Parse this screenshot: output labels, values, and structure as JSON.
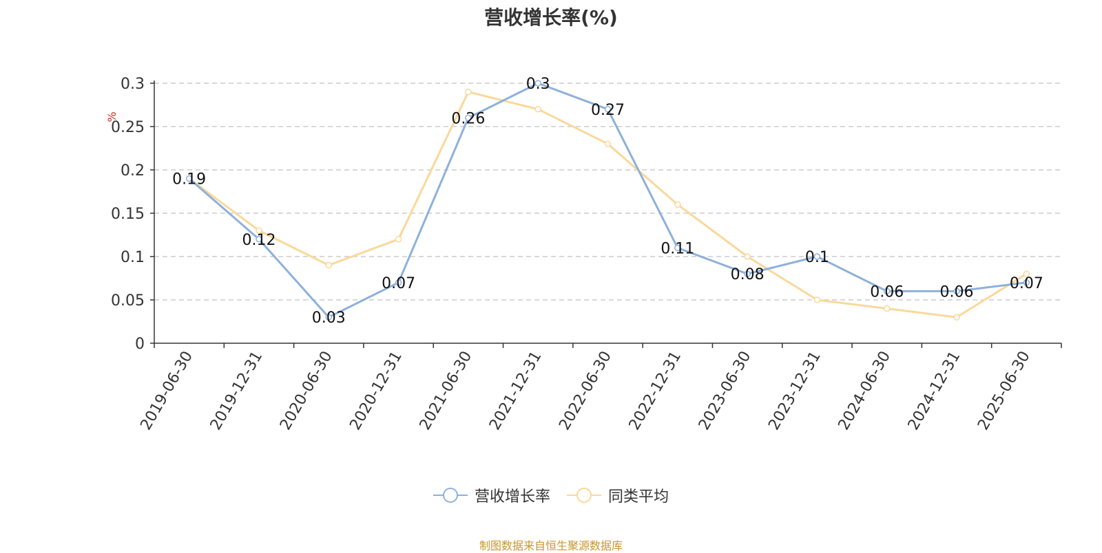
{
  "chart_data": {
    "type": "line",
    "title": "营收增长率(%)",
    "ylabel": "%",
    "xlabel": "",
    "categories": [
      "2019-06-30",
      "2019-12-31",
      "2020-06-30",
      "2020-12-31",
      "2021-06-30",
      "2021-12-31",
      "2022-06-30",
      "2022-12-31",
      "2023-06-30",
      "2023-12-31",
      "2024-06-30",
      "2024-12-31",
      "2025-06-30"
    ],
    "ylim": [
      0,
      0.3
    ],
    "yticks": [
      "0",
      "0.05",
      "0.1",
      "0.15",
      "0.2",
      "0.25",
      "0.3"
    ],
    "grid": true,
    "legend_position": "bottom",
    "series": [
      {
        "name": "营收增长率",
        "color": "#8eb0dc",
        "values": [
          0.19,
          0.12,
          0.03,
          0.07,
          0.26,
          0.3,
          0.27,
          0.11,
          0.08,
          0.1,
          0.06,
          0.06,
          0.07
        ],
        "labels": [
          "0.19",
          "0.12",
          "0.03",
          "0.07",
          "0.26",
          "0.3",
          "0.27",
          "0.11",
          "0.08",
          "0.1",
          "0.06",
          "0.06",
          "0.07"
        ]
      },
      {
        "name": "同类平均",
        "color": "#fad89a",
        "values": [
          0.19,
          0.13,
          0.09,
          0.12,
          0.29,
          0.27,
          0.23,
          0.16,
          0.1,
          0.05,
          0.04,
          0.03,
          0.08
        ]
      }
    ],
    "source": "制图数据来自恒生聚源数据库"
  }
}
